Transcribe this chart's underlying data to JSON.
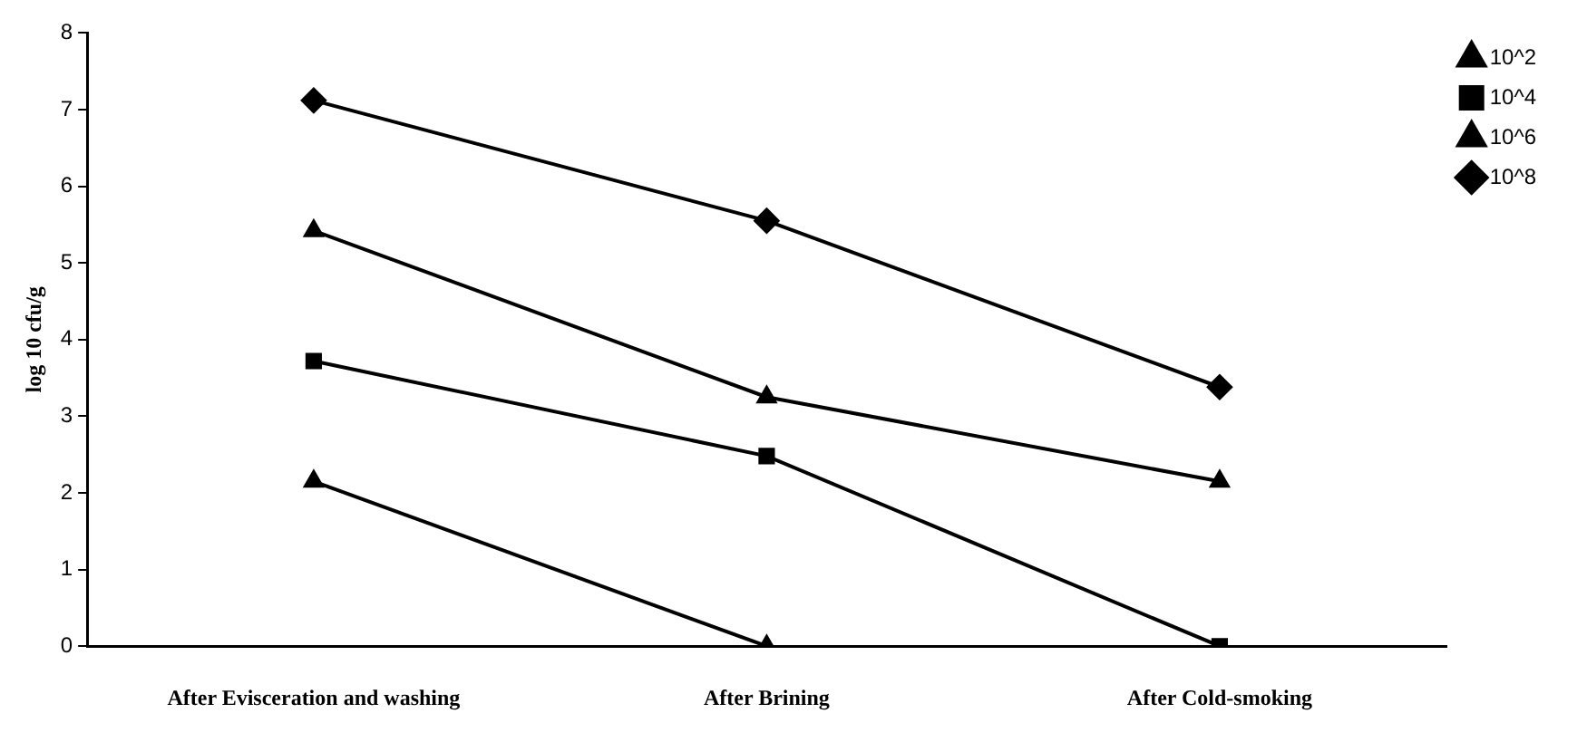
{
  "chart_data": {
    "type": "line",
    "ylabel": "log 10 cfu/g",
    "categories": [
      "After Evisceration and washing",
      "After Brining",
      "After Cold-smoking"
    ],
    "series": [
      {
        "name": "10^2",
        "color": "#000000",
        "marker": "triangle",
        "values": [
          2.15,
          0,
          null
        ]
      },
      {
        "name": "10^4",
        "color": "#000000",
        "marker": "square",
        "values": [
          3.72,
          2.48,
          0
        ]
      },
      {
        "name": "10^6",
        "color": "#000000",
        "marker": "triangle",
        "values": [
          5.42,
          3.25,
          2.15
        ]
      },
      {
        "name": "10^8",
        "color": "#000000",
        "marker": "diamond",
        "values": [
          7.12,
          5.55,
          3.38
        ]
      }
    ],
    "ylim": [
      0,
      8
    ],
    "yticks": [
      0,
      1,
      2,
      3,
      4,
      5,
      6,
      7,
      8
    ],
    "grid": false,
    "legend": "top right",
    "line_style": "solid"
  }
}
